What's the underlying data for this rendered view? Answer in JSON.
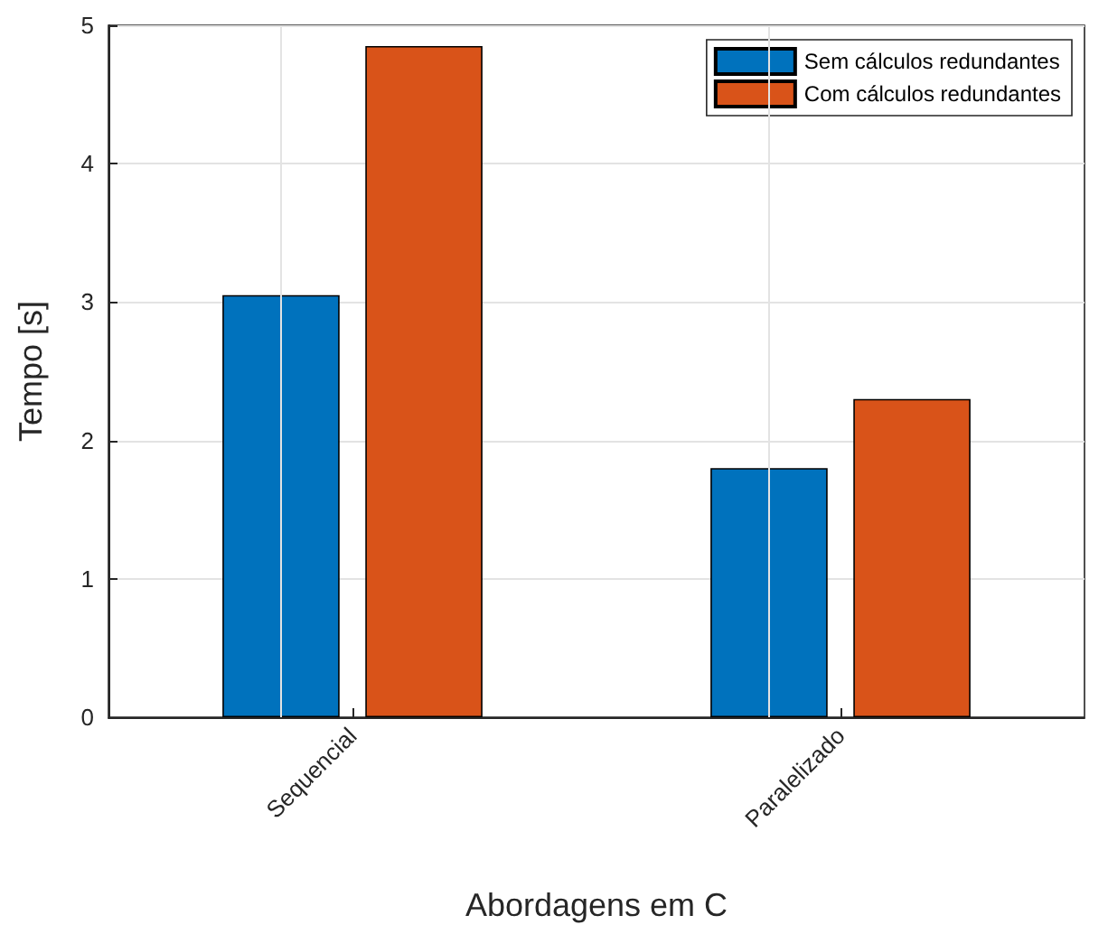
{
  "chart_data": {
    "type": "bar",
    "xlabel": "Abordagens em C",
    "ylabel": "Tempo [s]",
    "categories": [
      "Sequencial",
      "Paralelizado"
    ],
    "series": [
      {
        "name": "Sem cálculos redundantes",
        "color": "#0072bd",
        "values": [
          3.05,
          1.8
        ]
      },
      {
        "name": "Com cálculos redundantes",
        "color": "#d95319",
        "values": [
          4.85,
          2.3
        ]
      }
    ],
    "ylim": [
      0,
      5
    ],
    "yticks": [
      0,
      1,
      2,
      3,
      4,
      5
    ],
    "grid": true,
    "legend": "top right"
  }
}
